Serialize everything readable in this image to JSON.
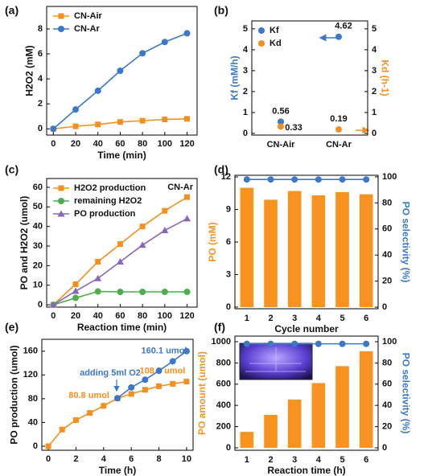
{
  "chart_data": [
    {
      "label": "(a)",
      "type": "line",
      "xlabel": "Time (min)",
      "ylabel": "H2O2 (mM)",
      "x": [
        0,
        20,
        40,
        60,
        80,
        100,
        120
      ],
      "xlim": [
        -6,
        129
      ],
      "xticks": [
        0,
        20,
        40,
        60,
        80,
        100,
        120
      ],
      "ylim": [
        -0.5,
        9.8
      ],
      "yticks": [
        0,
        2,
        4,
        6,
        8
      ],
      "legend": "upper left",
      "series": [
        {
          "name": "CN-Air",
          "color": "#f39020",
          "marker": "square",
          "values": [
            0,
            0.2,
            0.35,
            0.55,
            0.65,
            0.75,
            0.8
          ]
        },
        {
          "name": "CN-Ar",
          "color": "#3b78c8",
          "marker": "circle",
          "values": [
            0,
            1.55,
            3.05,
            4.65,
            6.05,
            6.95,
            7.65
          ]
        }
      ]
    },
    {
      "label": "(b)",
      "type": "scatter",
      "ylabel": "Kf (mM/h)",
      "y2label": "Kd (h-1)",
      "categories": [
        "CN-Air",
        "CN-Ar"
      ],
      "ylim": [
        -0.08,
        5.38
      ],
      "yticks": [
        0,
        1,
        2,
        3,
        4,
        5
      ],
      "y2lim": [
        -0.08,
        5.38
      ],
      "y2ticks": [
        0,
        1,
        2,
        3,
        4,
        5
      ],
      "legend": "upper left",
      "data_labels": true,
      "series": [
        {
          "name": "Kf",
          "color": "#3b78c8",
          "marker": "circle",
          "values": [
            0.56,
            4.62
          ]
        },
        {
          "name": "Kd",
          "color": "#f39020",
          "marker": "circle",
          "axis": "y2",
          "values": [
            0.33,
            0.19
          ]
        }
      ]
    },
    {
      "label": "(c)",
      "type": "line",
      "xlabel": "Reaction time (min)",
      "ylabel": "PO and H2O2 (umol)",
      "x": [
        0,
        20,
        40,
        60,
        80,
        100,
        120
      ],
      "xlim": [
        -6,
        129
      ],
      "xticks": [
        0,
        20,
        40,
        60,
        80,
        100,
        120
      ],
      "ylim": [
        -1.2,
        64.5
      ],
      "yticks": [
        0,
        10,
        20,
        30,
        40,
        50,
        60
      ],
      "legend": "upper left",
      "annotations": [
        "CN-Ar"
      ],
      "series": [
        {
          "name": "H2O2 production",
          "color": "#f39020",
          "marker": "square",
          "values": [
            0,
            10.5,
            22,
            31,
            40,
            48,
            55
          ]
        },
        {
          "name": "remaining H2O2",
          "color": "#4cae4c",
          "marker": "circle",
          "values": [
            0,
            3.5,
            6.8,
            6.6,
            6.6,
            6.6,
            6.6
          ]
        },
        {
          "name": "PO production",
          "color": "#8a66b8",
          "marker": "triangle",
          "values": [
            0,
            7,
            13.5,
            22,
            30.5,
            38,
            44
          ]
        }
      ]
    },
    {
      "label": "(d)",
      "type": "bar",
      "xlabel": "Cycle number",
      "ylabel": "PO   (mM)",
      "y2label": "PO selectivity (%)",
      "categories": [
        "1",
        "2",
        "3",
        "4",
        "5",
        "6"
      ],
      "ylim": [
        -0.15,
        12.15
      ],
      "yticks": [
        0,
        3,
        6,
        9,
        12
      ],
      "y2lim": [
        -1.2,
        101.2
      ],
      "y2ticks": [
        0,
        20,
        40,
        60,
        80,
        100
      ],
      "series": [
        {
          "type": "bar",
          "color": "#f7931e",
          "values": [
            11,
            9.9,
            10.7,
            10.3,
            10.6,
            10.4
          ]
        },
        {
          "type": "line",
          "axis": "y2",
          "color": "#3b78c8",
          "marker": "circle",
          "values": [
            98,
            98,
            98,
            98,
            98,
            98
          ]
        }
      ]
    },
    {
      "label": "(e)",
      "type": "line",
      "xlabel": "Time (h)",
      "ylabel": "PO production (umol)",
      "xlim": [
        -0.47,
        10.47
      ],
      "xticks": [
        0,
        2,
        4,
        6,
        8,
        10
      ],
      "ylim": [
        -6.8,
        180
      ],
      "yticks": [
        0,
        40,
        80,
        120,
        160
      ],
      "annotations": [
        "adding 5ml O2"
      ],
      "series": [
        {
          "color": "#f39020",
          "marker": "square",
          "x": [
            0,
            1,
            2,
            3,
            4,
            5,
            6,
            7,
            8,
            9,
            10
          ],
          "values": [
            0,
            28,
            44,
            56,
            68,
            80.8,
            88,
            95,
            101,
            105,
            108.8
          ],
          "value_labels": [
            null,
            null,
            null,
            null,
            null,
            "80.8 umol",
            null,
            null,
            null,
            null,
            "108.8 umol"
          ]
        },
        {
          "color": "#3b78c8",
          "marker": "circle",
          "x": [
            5,
            6,
            7,
            8,
            9,
            10
          ],
          "values": [
            80.8,
            99,
            112,
            127,
            143,
            160.1
          ],
          "value_labels": [
            null,
            null,
            null,
            null,
            null,
            "160.1 umol"
          ]
        }
      ]
    },
    {
      "label": "(f)",
      "type": "bar",
      "xlabel": "Reaction time (h)",
      "ylabel": "PO amount (umol)",
      "y2label": "PO selectivity (%)",
      "categories": [
        "1",
        "2",
        "3",
        "4",
        "5",
        "6"
      ],
      "ylim": [
        -23,
        1053
      ],
      "yticks": [
        0,
        200,
        400,
        600,
        800,
        1000
      ],
      "y2lim": [
        -2.3,
        105.3
      ],
      "y2ticks": [
        0,
        20,
        40,
        60,
        80,
        100
      ],
      "series": [
        {
          "type": "bar",
          "color": "#f7931e",
          "values": [
            150,
            310,
            455,
            610,
            770,
            910
          ]
        },
        {
          "type": "line",
          "axis": "y2",
          "color": "#3b78c8",
          "marker": "circle",
          "values": [
            98,
            98,
            98,
            98,
            98,
            98
          ]
        }
      ]
    }
  ]
}
